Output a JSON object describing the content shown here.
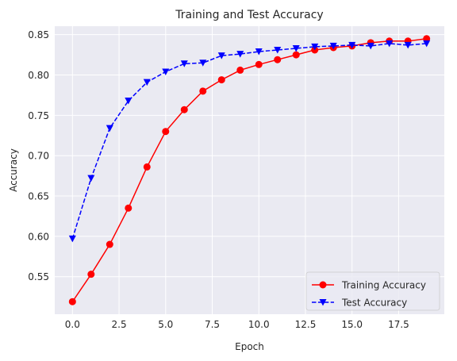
{
  "chart_data": {
    "type": "line",
    "title": "Training and Test Accuracy",
    "xlabel": "Epoch",
    "ylabel": "Accuracy",
    "x": [
      0,
      1,
      2,
      3,
      4,
      5,
      6,
      7,
      8,
      9,
      10,
      11,
      12,
      13,
      14,
      15,
      16,
      17,
      18,
      19
    ],
    "xlim": [
      -0.95,
      19.95
    ],
    "ylim": [
      0.5035,
      0.8605
    ],
    "xticks": [
      0.0,
      2.5,
      5.0,
      7.5,
      10.0,
      12.5,
      15.0,
      17.5
    ],
    "xtick_labels": [
      "0.0",
      "2.5",
      "5.0",
      "7.5",
      "10.0",
      "12.5",
      "15.0",
      "17.5"
    ],
    "yticks": [
      0.55,
      0.6,
      0.65,
      0.7,
      0.75,
      0.8,
      0.85
    ],
    "ytick_labels": [
      "0.55",
      "0.60",
      "0.65",
      "0.70",
      "0.75",
      "0.80",
      "0.85"
    ],
    "grid": true,
    "legend_position": "lower-right",
    "background_color": "#eaeaf2",
    "grid_color": "#ffffff",
    "series": [
      {
        "name": "Training Accuracy",
        "color": "#ff0000",
        "line_style": "solid",
        "marker": "circle",
        "values": [
          0.519,
          0.553,
          0.59,
          0.635,
          0.686,
          0.73,
          0.757,
          0.78,
          0.794,
          0.806,
          0.813,
          0.819,
          0.825,
          0.831,
          0.834,
          0.836,
          0.84,
          0.842,
          0.842,
          0.845
        ]
      },
      {
        "name": "Test Accuracy",
        "color": "#0000ff",
        "line_style": "dashed",
        "marker": "triangle-down",
        "values": [
          0.597,
          0.672,
          0.734,
          0.768,
          0.791,
          0.804,
          0.814,
          0.815,
          0.824,
          0.826,
          0.829,
          0.831,
          0.833,
          0.835,
          0.836,
          0.837,
          0.836,
          0.839,
          0.837,
          0.839
        ]
      }
    ]
  }
}
